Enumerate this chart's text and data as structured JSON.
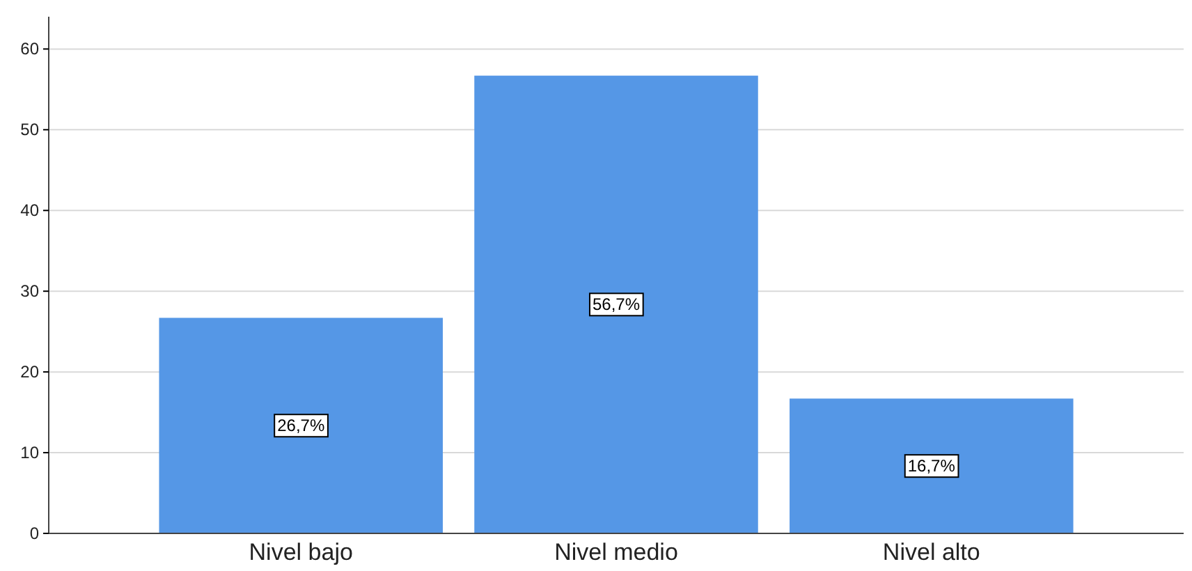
{
  "chart_data": {
    "type": "bar",
    "categories": [
      "Nivel bajo",
      "Nivel medio",
      "Nivel alto"
    ],
    "values": [
      26.7,
      56.7,
      16.7
    ],
    "value_labels": [
      "26,7%",
      "56,7%",
      "16,7%"
    ],
    "color": "#5597e6",
    "ylim": [
      0,
      64
    ],
    "yticks": [
      0,
      10,
      20,
      30,
      40,
      50,
      60
    ],
    "grid": "y"
  }
}
